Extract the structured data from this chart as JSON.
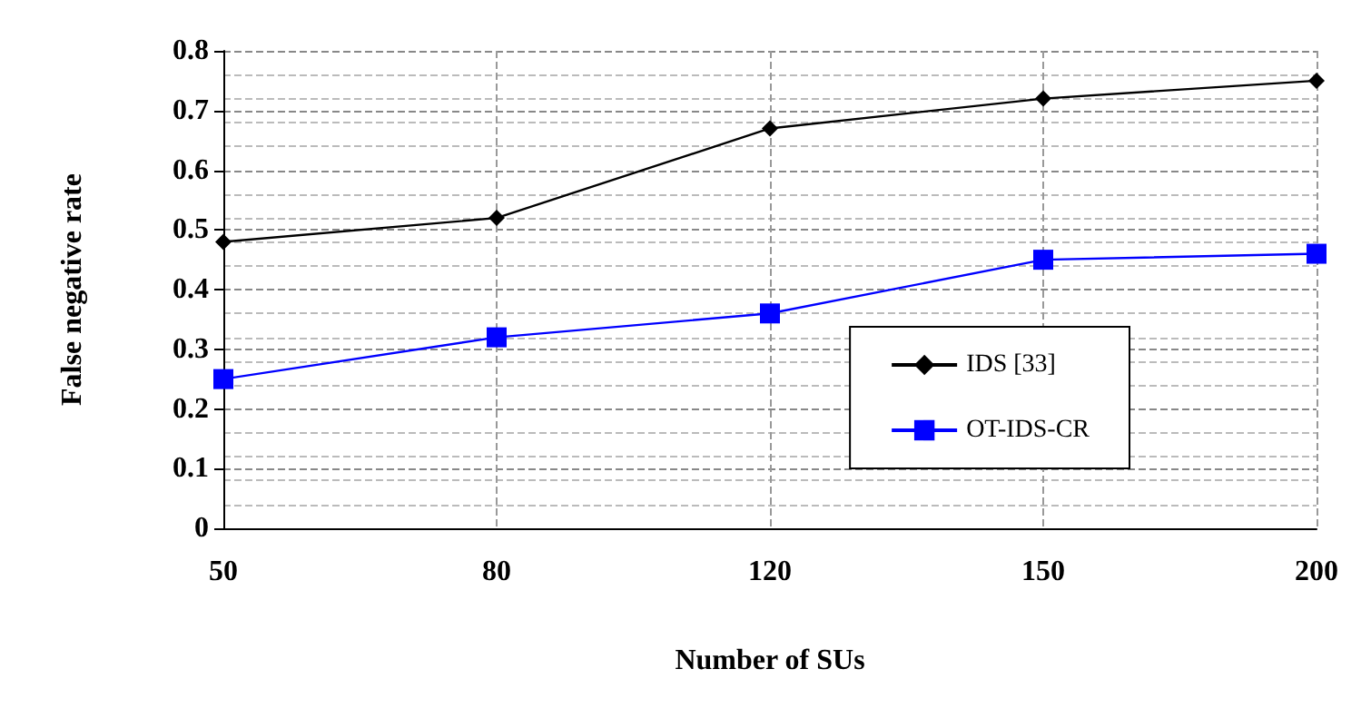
{
  "chart_data": {
    "type": "line",
    "xlabel": "Number of SUs",
    "ylabel": "False negative rate",
    "categories": [
      "50",
      "80",
      "120",
      "150",
      "200"
    ],
    "series": [
      {
        "name": "IDS [33]",
        "color": "#000000",
        "marker": "diamond",
        "values": [
          0.48,
          0.52,
          0.67,
          0.72,
          0.75
        ]
      },
      {
        "name": "OT-IDS-CR",
        "color": "#0000ff",
        "marker": "square",
        "values": [
          0.25,
          0.32,
          0.36,
          0.45,
          0.46
        ]
      }
    ],
    "ylim": [
      0,
      0.8
    ],
    "yticks": [
      0,
      0.1,
      0.2,
      0.3,
      0.4,
      0.5,
      0.6,
      0.7,
      0.8
    ],
    "grid": true,
    "legend": "right"
  }
}
